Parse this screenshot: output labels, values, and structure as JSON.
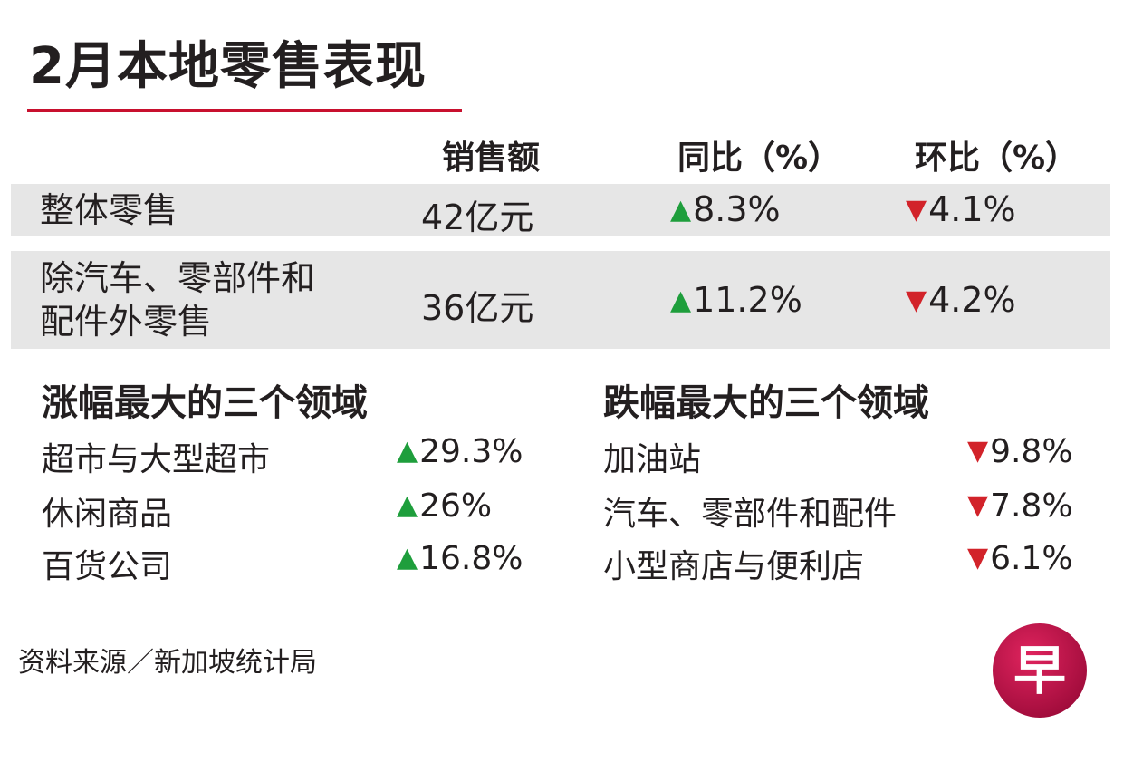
{
  "title": "2月本地零售表现",
  "table": {
    "headers": {
      "sales": "销售额",
      "yoy": "同比（%）",
      "mom": "环比（%）"
    },
    "rows": [
      {
        "label_line1": "整体零售",
        "label_line2": "",
        "sales": "42亿元",
        "yoy": "8.3%",
        "yoy_dir": "up",
        "mom": "4.1%",
        "mom_dir": "down"
      },
      {
        "label_line1": "除汽车、零部件和",
        "label_line2": "配件外零售",
        "sales": "36亿元",
        "yoy": "11.2%",
        "yoy_dir": "up",
        "mom": "4.2%",
        "mom_dir": "down"
      }
    ]
  },
  "gainers": {
    "title": "涨幅最大的三个领域",
    "items": [
      {
        "label": "超市与大型超市",
        "value": "29.3%"
      },
      {
        "label": "休闲商品",
        "value": "26%"
      },
      {
        "label": "百货公司",
        "value": "16.8%"
      }
    ]
  },
  "losers": {
    "title": "跌幅最大的三个领域",
    "items": [
      {
        "label": "加油站",
        "value": "9.8%"
      },
      {
        "label": "汽车、零部件和配件",
        "value": "7.8%"
      },
      {
        "label": "小型商店与便利店",
        "value": "6.1%"
      }
    ]
  },
  "source": "资料来源／新加坡统计局",
  "logo_text": "早",
  "colors": {
    "up": "#1e9e3c",
    "down": "#d2232a",
    "accent": "#c8102e",
    "band": "#e6e6e6"
  },
  "icons": {
    "up": "triangle-up-icon",
    "down": "triangle-down-icon"
  }
}
